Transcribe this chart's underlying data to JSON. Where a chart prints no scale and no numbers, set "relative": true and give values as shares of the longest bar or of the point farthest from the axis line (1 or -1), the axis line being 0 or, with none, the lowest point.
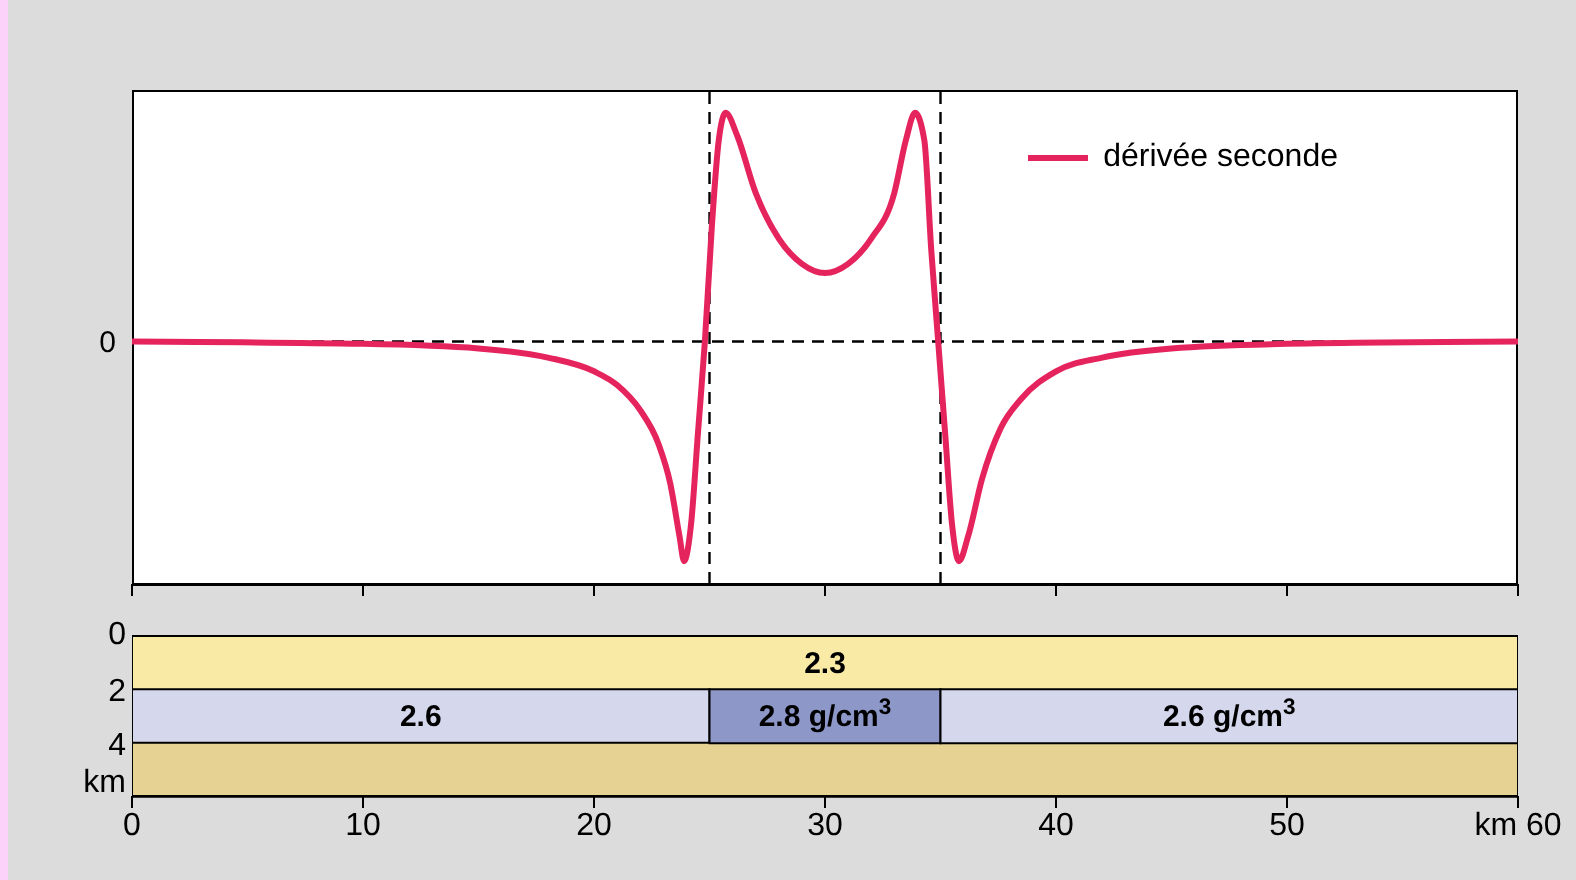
{
  "chart_data": [
    {
      "type": "line",
      "relative": true,
      "xlim": [
        0,
        60
      ],
      "xticks": [
        0,
        10,
        20,
        30,
        40,
        50,
        60
      ],
      "tick_labels": false,
      "legend": "top right",
      "marker": "none",
      "line_style": "solid",
      "ref_lines": [
        {
          "axis": "y",
          "value": 0,
          "label": "0",
          "color": "#000000",
          "line_style": "dashed"
        },
        {
          "axis": "x",
          "value": 25,
          "color": "#000000",
          "line_style": "dashed"
        },
        {
          "axis": "x",
          "value": 35,
          "color": "#000000",
          "line_style": "dashed"
        }
      ],
      "series": [
        {
          "name": "dérivée seconde",
          "color": "#e5245e",
          "x": [
            0,
            10,
            15,
            18,
            20,
            21,
            22,
            22.8,
            23.3,
            23.7,
            23.9,
            24.2,
            24.5,
            24.8,
            25.1,
            25.4,
            25.7,
            26.2,
            27,
            28,
            29,
            30,
            31,
            32,
            33,
            33.5,
            33.9,
            34.3,
            34.6,
            34.9,
            35.2,
            35.5,
            35.8,
            36.2,
            36.8,
            37.6,
            38.5,
            40,
            42,
            45,
            50,
            60
          ],
          "values": [
            0,
            -0.01,
            -0.03,
            -0.07,
            -0.13,
            -0.19,
            -0.3,
            -0.45,
            -0.62,
            -0.85,
            -0.96,
            -0.8,
            -0.4,
            0,
            0.5,
            0.88,
            1,
            0.9,
            0.65,
            0.45,
            0.34,
            0.3,
            0.34,
            0.45,
            0.65,
            0.88,
            1,
            0.88,
            0.4,
            0,
            -0.4,
            -0.8,
            -0.96,
            -0.85,
            -0.6,
            -0.38,
            -0.25,
            -0.13,
            -0.07,
            -0.03,
            -0.01,
            0
          ]
        }
      ]
    },
    {
      "type": "bar",
      "orientation": "horizontal",
      "stacked": true,
      "categories": [
        null,
        null,
        null
      ],
      "xlim": [
        0,
        60
      ],
      "xticks": [
        0,
        10,
        20,
        30,
        40,
        50,
        {
          "value": 60,
          "label": "km 60"
        }
      ],
      "tick_labels": "x",
      "annotations": [
        "0",
        "2",
        "4",
        "km",
        "2.3",
        "2.6",
        "2.8 g/cm$^{3}$",
        "2.6 g/cm$^{3}$"
      ],
      "series": [
        {
          "colors": [
            "#f9eaa6",
            "#d5d8ec",
            "#e6d293"
          ],
          "values": [
            60,
            25,
            60
          ]
        },
        {
          "colors": [
            null,
            "#8e98c8",
            null
          ],
          "values": [
            null,
            10,
            null
          ]
        },
        {
          "colors": [
            null,
            "#d5d8ec",
            null
          ],
          "values": [
            null,
            25,
            null
          ]
        }
      ]
    }
  ]
}
